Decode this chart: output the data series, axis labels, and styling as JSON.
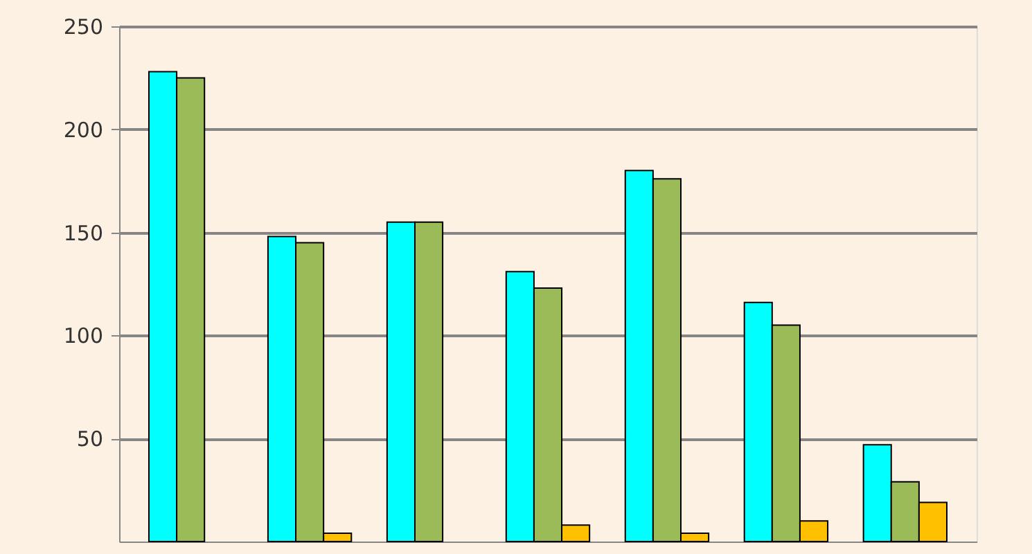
{
  "chart_data": {
    "type": "bar",
    "categories": [
      null,
      null,
      null,
      null,
      null,
      null,
      null
    ],
    "series": [
      {
        "color": "#00ffff",
        "values": [
          228,
          148,
          155,
          131,
          180,
          116,
          47
        ]
      },
      {
        "color": "#9bbb59",
        "values": [
          225,
          145,
          155,
          123,
          176,
          105,
          29
        ]
      },
      {
        "color": "#ffc000",
        "values": [
          null,
          4,
          null,
          8,
          4,
          10,
          19
        ]
      }
    ],
    "ylim": [
      0,
      250
    ],
    "yticks": [
      50,
      100,
      150,
      200,
      250
    ],
    "grid": "y",
    "tick_labels": "y"
  }
}
